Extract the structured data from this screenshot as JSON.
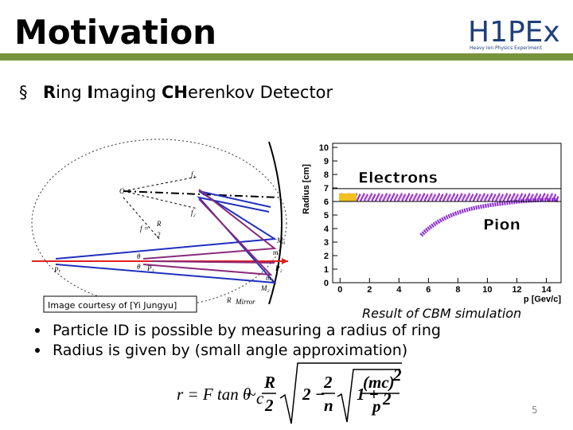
{
  "header": {
    "title": "Motivation",
    "logo": "H1PEx",
    "logo_subtitle": "Heavy Ion Physics Experiment"
  },
  "section": {
    "marker": "§",
    "parts": [
      "R",
      "ing ",
      "I",
      "maging ",
      "CH",
      "erenkov Detector"
    ]
  },
  "diagram": {
    "labels": [
      "O",
      "f₁",
      "f₂",
      "f =",
      "R",
      "2",
      "M₁",
      "m₁",
      "P₁",
      "P₂",
      "m₂",
      "M₂",
      "Pₜ",
      "R",
      "Mirror",
      "θ",
      "θ"
    ],
    "caption": "Image courtesy of [Yi Jungyu]"
  },
  "plot": {
    "y_label": "Radius [cm]",
    "x_label": "p [Gev/c]",
    "xlim": [
      -0.5,
      15
    ],
    "ylim": [
      0,
      10.3
    ],
    "xticks": [
      0,
      2,
      4,
      6,
      8,
      10,
      12,
      14
    ],
    "yticks": [
      0,
      1,
      2,
      3,
      4,
      5,
      6,
      7,
      8,
      9,
      10
    ],
    "annotations": [
      "Electrons",
      "Pion"
    ],
    "caption": "Result of CBM simulation"
  },
  "bullets": [
    "Particle ID is possible by measuring a radius of ring",
    "Radius is given by (small angle approximation)"
  ],
  "formula": {
    "lhs": "r = F tan θ",
    "lhs_sub": "c",
    "approx": "~",
    "R": "R",
    "R_den": "2",
    "two_minus": "2 −",
    "frac_num": "2",
    "frac_den": "n",
    "one_plus": "1 +",
    "mc": "(mc)",
    "mc_exp": "2",
    "p": "p",
    "p_exp": "2"
  },
  "page_number": "5"
}
